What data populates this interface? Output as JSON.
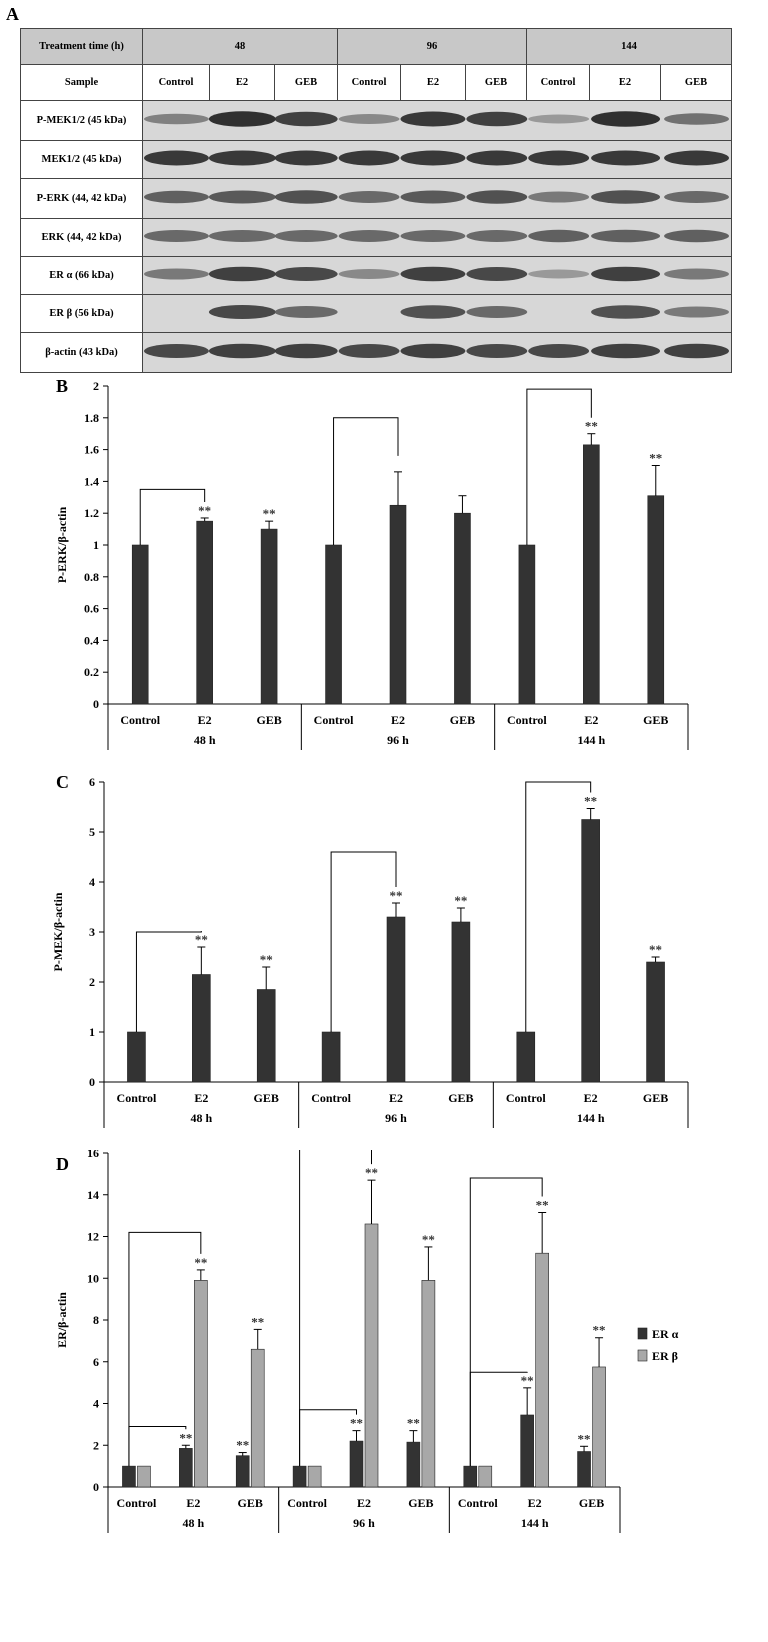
{
  "panel_a": {
    "letter": "A",
    "header_label": "Treatment time (h)",
    "times": [
      "48",
      "96",
      "144"
    ],
    "sample_label": "Sample",
    "samples": [
      "Control",
      "E2",
      "GEB",
      "Control",
      "E2",
      "GEB",
      "Control",
      "E2",
      "GEB"
    ],
    "rows": [
      {
        "label": "P-MEK1/2 (45 kDa)",
        "intensity": [
          0.45,
          0.95,
          0.85,
          0.4,
          0.9,
          0.85,
          0.3,
          0.95,
          0.55
        ]
      },
      {
        "label": "MEK1/2 (45 kDa)",
        "intensity": [
          0.9,
          0.9,
          0.9,
          0.9,
          0.9,
          0.9,
          0.9,
          0.9,
          0.9
        ]
      },
      {
        "label": "P-ERK (44, 42 kDa)",
        "intensity": [
          0.65,
          0.7,
          0.75,
          0.6,
          0.7,
          0.75,
          0.5,
          0.75,
          0.6
        ]
      },
      {
        "label": "ERK (44, 42 kDa)",
        "intensity": [
          0.6,
          0.6,
          0.6,
          0.6,
          0.6,
          0.6,
          0.65,
          0.65,
          0.65
        ]
      },
      {
        "label": "ER α (66 kDa)",
        "intensity": [
          0.5,
          0.85,
          0.8,
          0.4,
          0.85,
          0.8,
          0.3,
          0.85,
          0.5
        ]
      },
      {
        "label": "ER β (56 kDa)",
        "intensity": [
          0.05,
          0.8,
          0.6,
          0.05,
          0.75,
          0.6,
          0.05,
          0.75,
          0.5
        ]
      },
      {
        "label": "β-actin (43 kDa)",
        "intensity": [
          0.8,
          0.85,
          0.85,
          0.8,
          0.85,
          0.8,
          0.8,
          0.85,
          0.85
        ]
      }
    ]
  },
  "chart_data": [
    {
      "letter": "B",
      "type": "bar",
      "ylabel": "P-ERK/β-actin",
      "ylim": [
        0,
        2
      ],
      "yticks": [
        "0",
        "0.2",
        "0.4",
        "0.6",
        "0.8",
        "1",
        "1.2",
        "1.4",
        "1.6",
        "1.8",
        "2"
      ],
      "categories": [
        "Control",
        "E2",
        "GEB",
        "Control",
        "E2",
        "GEB",
        "Control",
        "E2",
        "GEB"
      ],
      "groups": [
        "48 h",
        "96 h",
        "144 h"
      ],
      "series": [
        {
          "color": "#333333",
          "values": [
            1,
            1.15,
            1.1,
            1,
            1.25,
            1.2,
            1,
            1.63,
            1.31
          ],
          "errors": [
            0,
            0.02,
            0.05,
            0,
            0.21,
            0.11,
            0,
            0.07,
            0.19
          ],
          "marks": [
            "",
            "**",
            "**",
            "",
            "",
            "",
            "",
            "**",
            "**"
          ]
        }
      ],
      "brackets": [
        [
          0,
          1,
          1.35
        ],
        [
          3,
          4,
          1.8
        ],
        [
          6,
          7,
          1.98
        ]
      ]
    },
    {
      "letter": "C",
      "type": "bar",
      "ylabel": "P-MEK/β-actin",
      "ylim": [
        0,
        6
      ],
      "yticks": [
        "0",
        "1",
        "2",
        "3",
        "4",
        "5",
        "6"
      ],
      "categories": [
        "Control",
        "E2",
        "GEB",
        "Control",
        "E2",
        "GEB",
        "Control",
        "E2",
        "GEB"
      ],
      "groups": [
        "48 h",
        "96 h",
        "144 h"
      ],
      "series": [
        {
          "color": "#333333",
          "values": [
            1,
            2.15,
            1.85,
            1,
            3.3,
            3.2,
            1,
            5.25,
            2.4
          ],
          "errors": [
            0,
            0.55,
            0.45,
            0,
            0.28,
            0.28,
            0,
            0.22,
            0.1
          ],
          "marks": [
            "",
            "**",
            "**",
            "",
            "**",
            "**",
            "",
            "**",
            "**"
          ]
        }
      ],
      "brackets": [
        [
          0,
          1,
          3.0
        ],
        [
          3,
          4,
          4.6
        ],
        [
          6,
          7,
          6.0
        ]
      ]
    },
    {
      "letter": "D",
      "type": "bar",
      "ylabel": "ER/β-actin",
      "ylim": [
        0,
        16
      ],
      "yticks": [
        "0",
        "2",
        "4",
        "6",
        "8",
        "10",
        "12",
        "14",
        "16"
      ],
      "categories": [
        "Control",
        "E2",
        "GEB",
        "Control",
        "E2",
        "GEB",
        "Control",
        "E2",
        "GEB"
      ],
      "groups": [
        "48 h",
        "96 h",
        "144 h"
      ],
      "series": [
        {
          "name": "ER α",
          "color": "#333333",
          "values": [
            1,
            1.85,
            1.5,
            1,
            2.2,
            2.15,
            1,
            3.45,
            1.7
          ],
          "errors": [
            0,
            0.15,
            0.15,
            0,
            0.5,
            0.55,
            0,
            1.3,
            0.25
          ],
          "marks": [
            "",
            "**",
            "**",
            "",
            "**",
            "**",
            "",
            "**",
            "**"
          ]
        },
        {
          "name": "ER β",
          "color": "#a8a8a8",
          "values": [
            1,
            9.9,
            6.6,
            1,
            12.6,
            9.9,
            1,
            11.2,
            5.75
          ],
          "errors": [
            0,
            0.5,
            0.95,
            0,
            2.1,
            1.6,
            0,
            1.95,
            1.4
          ],
          "marks": [
            "",
            "**",
            "**",
            "",
            "**",
            "**",
            "",
            "**",
            "**"
          ]
        }
      ],
      "brackets": [
        [
          0,
          1,
          2.9,
          0,
          0
        ],
        [
          0,
          1,
          12.2,
          0,
          1
        ],
        [
          3,
          4,
          3.7,
          0,
          0
        ],
        [
          3,
          4,
          16.3,
          0,
          1
        ],
        [
          6,
          7,
          5.5,
          0,
          0
        ],
        [
          6,
          7,
          14.8,
          0,
          1
        ]
      ],
      "legend_position": "right"
    }
  ]
}
